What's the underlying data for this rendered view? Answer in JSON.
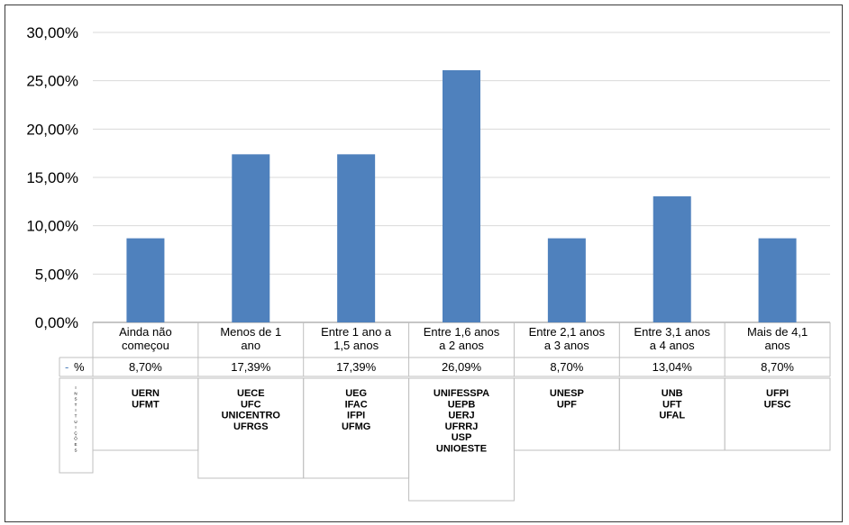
{
  "chart_data": {
    "type": "bar",
    "categories": [
      [
        "Ainda não",
        "começou"
      ],
      [
        "Menos de 1",
        "ano"
      ],
      [
        "Entre 1 ano a",
        "1,5 anos"
      ],
      [
        "Entre 1,6 anos",
        "a 2 anos"
      ],
      [
        "Entre 2,1 anos",
        "a 3 anos"
      ],
      [
        "Entre 3,1 anos",
        "a 4 anos"
      ],
      [
        "Mais de 4,1",
        "anos"
      ]
    ],
    "values": [
      8.7,
      17.39,
      17.39,
      26.09,
      8.7,
      13.04,
      8.7
    ],
    "value_labels": [
      "8,70%",
      "17,39%",
      "17,39%",
      "26,09%",
      "8,70%",
      "13,04%",
      "8,70%"
    ],
    "ylim": [
      0,
      30
    ],
    "yticks": [
      "0,00%",
      "5,00%",
      "10,00%",
      "15,00%",
      "20,00%",
      "25,00%",
      "30,00%"
    ],
    "grid": true,
    "color": "#4f81bd",
    "table": {
      "series_marker": "-",
      "series_label": "%",
      "group_label": "INSTITUIÇÕES",
      "institutions": [
        [
          "UERN",
          "UFMT"
        ],
        [
          "UECE",
          "UFC",
          "UNICENTRO",
          "UFRGS"
        ],
        [
          "UEG",
          "IFAC",
          "IFPI",
          "UFMG"
        ],
        [
          "UNIFESSPA",
          "UEPB",
          "UERJ",
          "UFRRJ",
          "USP",
          "UNIOESTE"
        ],
        [
          "UNESP",
          "UPF"
        ],
        [
          "UNB",
          "UFT",
          "UFAL"
        ],
        [
          "UFPI",
          "UFSC"
        ]
      ]
    }
  }
}
